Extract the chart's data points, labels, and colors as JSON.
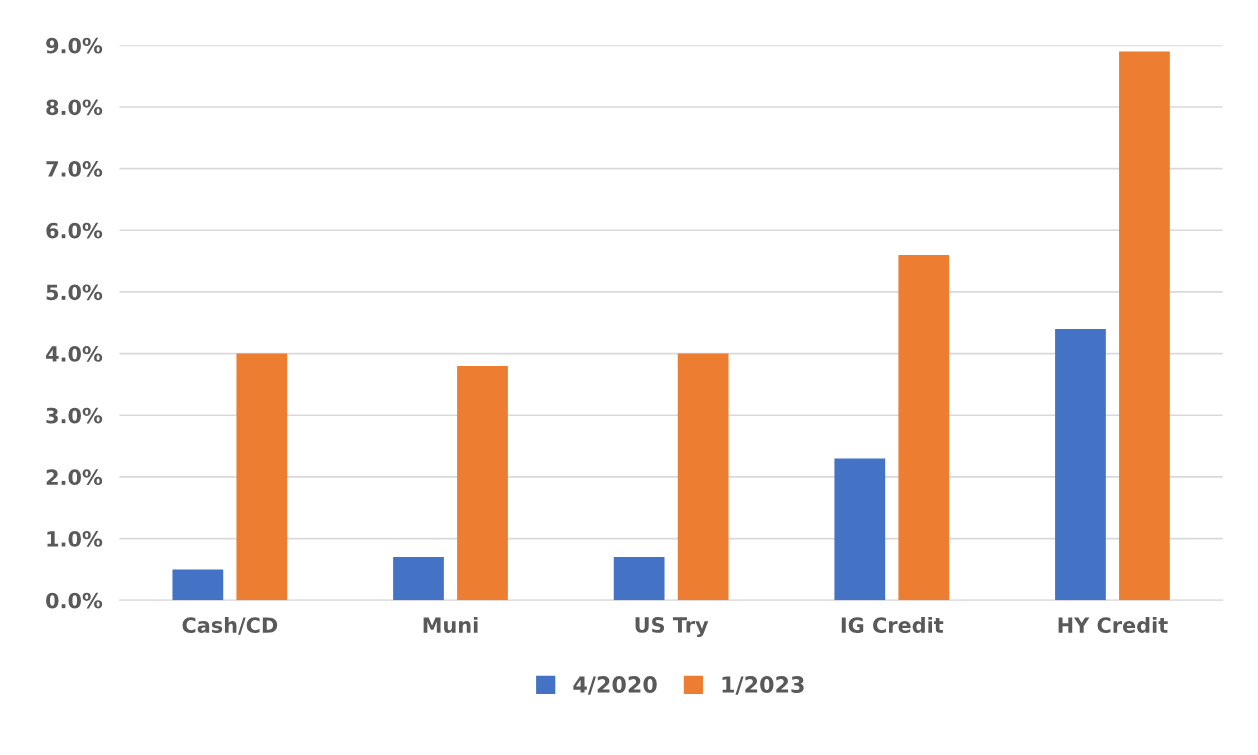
{
  "chart_data": {
    "type": "bar",
    "categories": [
      "Cash/CD",
      "Muni",
      "US Try",
      "IG Credit",
      "HY Credit"
    ],
    "series": [
      {
        "name": "4/2020",
        "color": "#4472c4",
        "values": [
          0.5,
          0.7,
          0.7,
          2.3,
          4.4
        ]
      },
      {
        "name": "1/2023",
        "color": "#ed7d31",
        "values": [
          4.0,
          3.8,
          4.0,
          5.6,
          8.9
        ]
      }
    ],
    "ylim": [
      0,
      9
    ],
    "yticks": [
      {
        "value": 0,
        "label": "0.0%"
      },
      {
        "value": 1,
        "label": "1.0%"
      },
      {
        "value": 2,
        "label": "2.0%"
      },
      {
        "value": 3,
        "label": "3.0%"
      },
      {
        "value": 4,
        "label": "4.0%"
      },
      {
        "value": 5,
        "label": "5.0%"
      },
      {
        "value": 6,
        "label": "6.0%"
      },
      {
        "value": 7,
        "label": "7.0%"
      },
      {
        "value": 8,
        "label": "8.0%"
      },
      {
        "value": 9,
        "label": "9.0%"
      }
    ],
    "grid": "y",
    "legend": "bottom"
  }
}
